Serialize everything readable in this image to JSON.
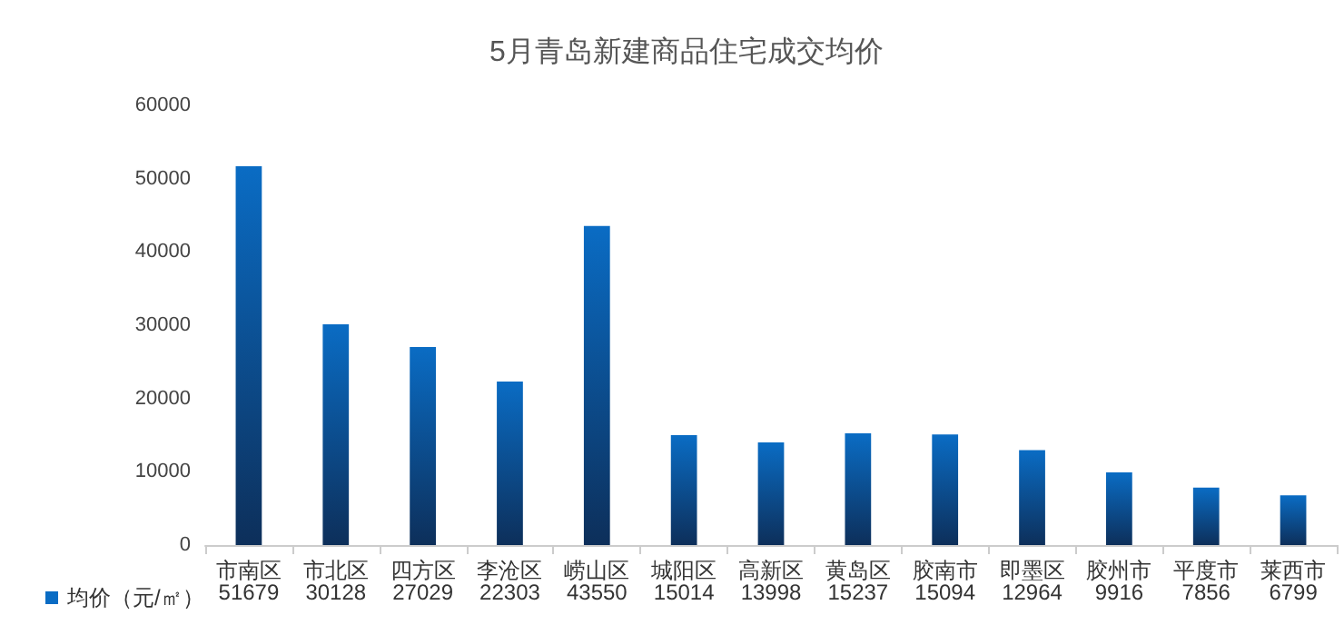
{
  "chart_data": {
    "type": "bar",
    "title": "5月青岛新建商品住宅成交均价",
    "categories": [
      "市南区",
      "市北区",
      "四方区",
      "李沧区",
      "崂山区",
      "城阳区",
      "高新区",
      "黄岛区",
      "胶南市",
      "即墨区",
      "胶州市",
      "平度市",
      "莱西市"
    ],
    "series": [
      {
        "name": "均价（元/㎡）",
        "color": "#0a6cc4",
        "values": [
          51679,
          30128,
          27029,
          22303,
          43550,
          15014,
          13998,
          15237,
          15094,
          12964,
          9916,
          7856,
          6799
        ]
      }
    ],
    "ylim": [
      0,
      60000
    ],
    "yticks": [
      0,
      10000,
      20000,
      30000,
      40000,
      50000,
      60000
    ],
    "grid": false,
    "legend": "bottom left",
    "data_labels": true
  }
}
